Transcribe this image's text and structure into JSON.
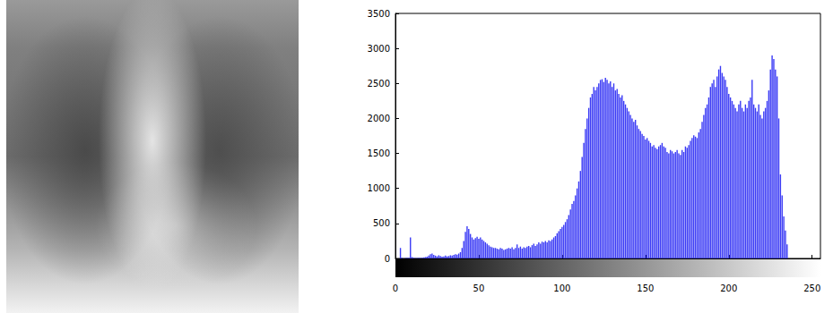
{
  "chart_data": {
    "type": "bar",
    "x": [
      0,
      1,
      2,
      3,
      4,
      5,
      6,
      7,
      8,
      9,
      10,
      11,
      12,
      13,
      14,
      15,
      16,
      17,
      18,
      19,
      20,
      21,
      22,
      23,
      24,
      25,
      26,
      27,
      28,
      29,
      30,
      31,
      32,
      33,
      34,
      35,
      36,
      37,
      38,
      39,
      40,
      41,
      42,
      43,
      44,
      45,
      46,
      47,
      48,
      49,
      50,
      51,
      52,
      53,
      54,
      55,
      56,
      57,
      58,
      59,
      60,
      61,
      62,
      63,
      64,
      65,
      66,
      67,
      68,
      69,
      70,
      71,
      72,
      73,
      74,
      75,
      76,
      77,
      78,
      79,
      80,
      81,
      82,
      83,
      84,
      85,
      86,
      87,
      88,
      89,
      90,
      91,
      92,
      93,
      94,
      95,
      96,
      97,
      98,
      99,
      100,
      101,
      102,
      103,
      104,
      105,
      106,
      107,
      108,
      109,
      110,
      111,
      112,
      113,
      114,
      115,
      116,
      117,
      118,
      119,
      120,
      121,
      122,
      123,
      124,
      125,
      126,
      127,
      128,
      129,
      130,
      131,
      132,
      133,
      134,
      135,
      136,
      137,
      138,
      139,
      140,
      141,
      142,
      143,
      144,
      145,
      146,
      147,
      148,
      149,
      150,
      151,
      152,
      153,
      154,
      155,
      156,
      157,
      158,
      159,
      160,
      161,
      162,
      163,
      164,
      165,
      166,
      167,
      168,
      169,
      170,
      171,
      172,
      173,
      174,
      175,
      176,
      177,
      178,
      179,
      180,
      181,
      182,
      183,
      184,
      185,
      186,
      187,
      188,
      189,
      190,
      191,
      192,
      193,
      194,
      195,
      196,
      197,
      198,
      199,
      200,
      201,
      202,
      203,
      204,
      205,
      206,
      207,
      208,
      209,
      210,
      211,
      212,
      213,
      214,
      215,
      216,
      217,
      218,
      219,
      220,
      221,
      222,
      223,
      224,
      225,
      226,
      227,
      228,
      229,
      230,
      231,
      232,
      233,
      234,
      235,
      236,
      237,
      238,
      239,
      240,
      241,
      242,
      243,
      244,
      245,
      246,
      247,
      248,
      249,
      250,
      251,
      252,
      253,
      254,
      255
    ],
    "values": [
      0,
      0,
      0,
      150,
      10,
      0,
      5,
      10,
      10,
      300,
      20,
      10,
      5,
      5,
      10,
      5,
      10,
      15,
      20,
      25,
      40,
      60,
      70,
      50,
      40,
      30,
      45,
      35,
      25,
      30,
      40,
      30,
      35,
      45,
      40,
      50,
      60,
      55,
      70,
      90,
      150,
      250,
      380,
      460,
      420,
      350,
      300,
      270,
      290,
      310,
      280,
      300,
      270,
      250,
      230,
      210,
      190,
      170,
      160,
      150,
      150,
      140,
      130,
      150,
      140,
      120,
      130,
      140,
      150,
      140,
      160,
      130,
      150,
      200,
      150,
      170,
      140,
      160,
      150,
      170,
      180,
      160,
      190,
      210,
      180,
      200,
      230,
      210,
      240,
      230,
      250,
      230,
      260,
      250,
      270,
      300,
      320,
      360,
      390,
      420,
      450,
      480,
      520,
      560,
      620,
      700,
      780,
      820,
      900,
      1000,
      1100,
      1250,
      1450,
      1650,
      1850,
      2000,
      2150,
      2300,
      2350,
      2450,
      2400,
      2450,
      2500,
      2550,
      2560,
      2520,
      2580,
      2550,
      2500,
      2530,
      2450,
      2500,
      2400,
      2420,
      2350,
      2300,
      2330,
      2250,
      2200,
      2150,
      2100,
      2050,
      2000,
      1950,
      1980,
      1900,
      1850,
      1820,
      1780,
      1750,
      1700,
      1720,
      1680,
      1650,
      1600,
      1620,
      1580,
      1560,
      1600,
      1620,
      1650,
      1600,
      1580,
      1520,
      1500,
      1550,
      1530,
      1500,
      1520,
      1550,
      1500,
      1480,
      1550,
      1520,
      1600,
      1580,
      1620,
      1680,
      1720,
      1760,
      1740,
      1720,
      1800,
      1850,
      1950,
      2050,
      2150,
      2200,
      2300,
      2450,
      2500,
      2550,
      2450,
      2600,
      2700,
      2750,
      2650,
      2600,
      2550,
      2450,
      2350,
      2300,
      2250,
      2200,
      2150,
      2100,
      2200,
      2250,
      2150,
      2100,
      2200,
      2150,
      2250,
      2300,
      2550,
      2200,
      2150,
      2100,
      2200,
      2050,
      2000,
      2100,
      2150,
      2250,
      2400,
      2700,
      2900,
      2850,
      2700,
      2600,
      2000,
      1200,
      900,
      600,
      400,
      200,
      0,
      0,
      0,
      0,
      0,
      0,
      0,
      0,
      0,
      0,
      0,
      0,
      0,
      0,
      0,
      0,
      0,
      0,
      0,
      0
    ],
    "color": "#3a3af5",
    "xlim": [
      0,
      255
    ],
    "xticks": [
      0,
      50,
      100,
      150,
      200,
      250
    ],
    "ylim": [
      0,
      3500
    ],
    "yticks": [
      0,
      500,
      1000,
      1500,
      2000,
      2500,
      3000,
      3500
    ],
    "grid": false
  }
}
